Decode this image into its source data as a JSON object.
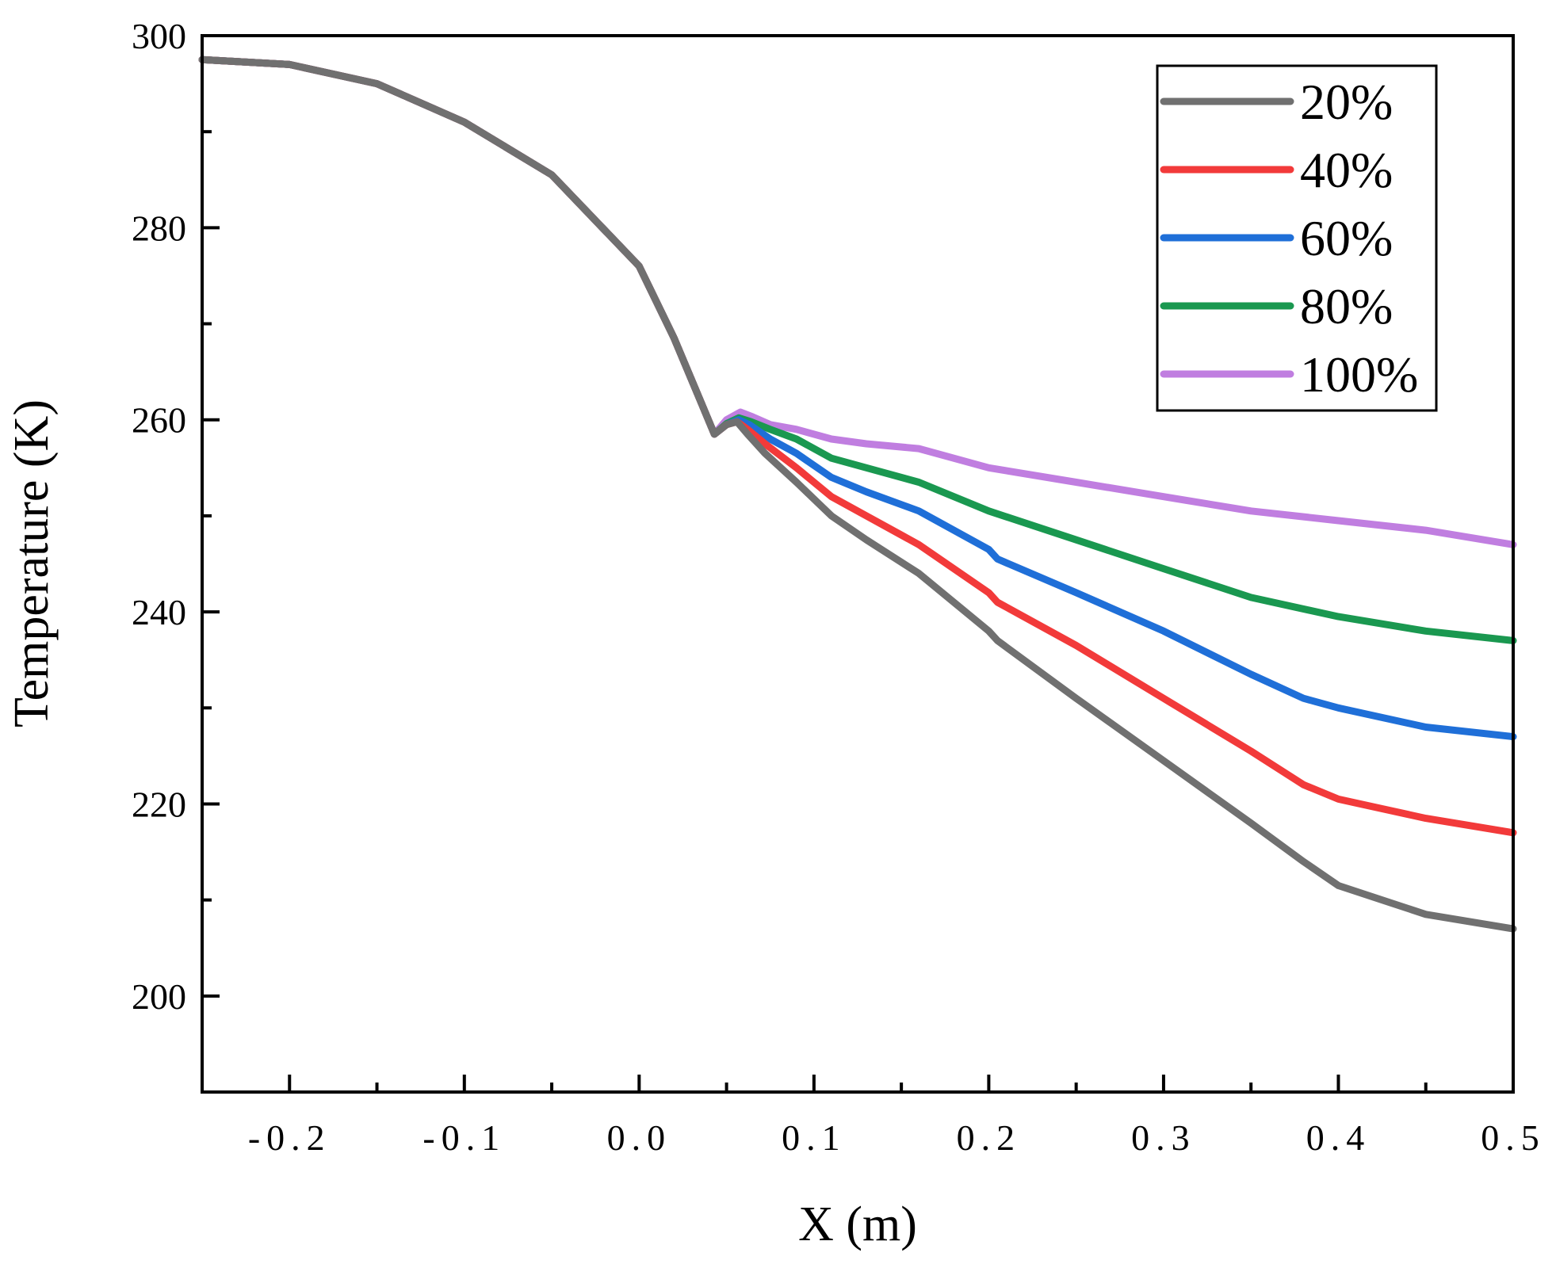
{
  "chart_data": {
    "type": "line",
    "title": "",
    "xlabel": "X (m)",
    "ylabel": "Temperature (K)",
    "xlim": [
      -0.25,
      0.5
    ],
    "ylim": [
      190,
      300
    ],
    "x_ticks": [
      -0.2,
      -0.1,
      0.0,
      0.1,
      0.2,
      0.3,
      0.4,
      0.5
    ],
    "x_tick_labels": [
      "-0.2",
      "-0.1",
      "0.0",
      "0.1",
      "0.2",
      "0.3",
      "0.4",
      "0.5"
    ],
    "y_ticks": [
      200,
      220,
      240,
      260,
      280,
      300
    ],
    "y_tick_labels": [
      "200",
      "220",
      "240",
      "260",
      "280",
      "300"
    ],
    "grid": false,
    "legend_position": "top-right",
    "shared": {
      "x": [
        -0.25,
        -0.2,
        -0.15,
        -0.1,
        -0.05,
        0.0,
        0.02,
        0.035,
        0.043
      ],
      "y": [
        297.5,
        297.0,
        295.0,
        291.0,
        285.5,
        276.0,
        268.5,
        262.0,
        258.5
      ]
    },
    "series": [
      {
        "name": "20%",
        "color": "#707070",
        "x": [
          0.043,
          0.05,
          0.056,
          0.062,
          0.072,
          0.09,
          0.11,
          0.13,
          0.16,
          0.2,
          0.205,
          0.25,
          0.3,
          0.35,
          0.38,
          0.4,
          0.45,
          0.5
        ],
        "y": [
          258.5,
          259.5,
          259.8,
          258.5,
          256.5,
          253.5,
          250.0,
          247.5,
          244.0,
          238.0,
          237.0,
          231.0,
          224.5,
          218.0,
          214.0,
          211.5,
          208.5,
          207.0
        ]
      },
      {
        "name": "40%",
        "color": "#f23a3a",
        "x": [
          0.043,
          0.05,
          0.056,
          0.062,
          0.072,
          0.09,
          0.11,
          0.13,
          0.16,
          0.2,
          0.205,
          0.25,
          0.3,
          0.35,
          0.38,
          0.4,
          0.45,
          0.5
        ],
        "y": [
          258.5,
          259.5,
          259.8,
          259.0,
          257.5,
          255.0,
          252.0,
          250.0,
          247.0,
          242.0,
          241.0,
          236.5,
          231.0,
          225.5,
          222.0,
          220.5,
          218.5,
          217.0
        ]
      },
      {
        "name": "60%",
        "color": "#1f6fd8",
        "x": [
          0.043,
          0.05,
          0.057,
          0.063,
          0.075,
          0.09,
          0.11,
          0.13,
          0.16,
          0.2,
          0.205,
          0.25,
          0.3,
          0.35,
          0.38,
          0.4,
          0.45,
          0.5
        ],
        "y": [
          258.5,
          259.5,
          260.0,
          259.5,
          258.0,
          256.5,
          254.0,
          252.5,
          250.5,
          246.5,
          245.5,
          242.0,
          238.0,
          233.5,
          231.0,
          230.0,
          228.0,
          227.0
        ]
      },
      {
        "name": "80%",
        "color": "#1a9850",
        "x": [
          0.043,
          0.05,
          0.057,
          0.064,
          0.075,
          0.09,
          0.11,
          0.13,
          0.16,
          0.2,
          0.25,
          0.3,
          0.35,
          0.4,
          0.45,
          0.5
        ],
        "y": [
          258.5,
          259.6,
          260.2,
          259.8,
          259.0,
          258.0,
          256.0,
          255.0,
          253.5,
          250.5,
          247.5,
          244.5,
          241.5,
          239.5,
          238.0,
          237.0
        ]
      },
      {
        "name": "100%",
        "color": "#c07ee0",
        "x": [
          0.043,
          0.05,
          0.058,
          0.065,
          0.075,
          0.09,
          0.11,
          0.13,
          0.16,
          0.2,
          0.25,
          0.3,
          0.35,
          0.4,
          0.45,
          0.5
        ],
        "y": [
          258.5,
          260.0,
          260.8,
          260.3,
          259.5,
          259.0,
          258.0,
          257.5,
          257.0,
          255.0,
          253.5,
          252.0,
          250.5,
          249.5,
          248.5,
          247.0
        ]
      }
    ]
  }
}
